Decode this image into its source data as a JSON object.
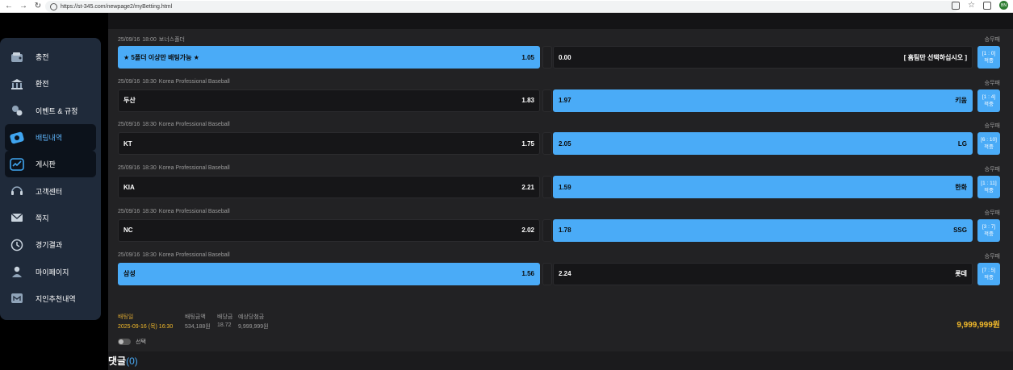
{
  "browser": {
    "url": "https://st-345.com/newpage2/myBetting.html",
    "profile_initials": "BN"
  },
  "sidebar": {
    "items": [
      {
        "label": "충전",
        "icon": "wallet-icon"
      },
      {
        "label": "환전",
        "icon": "bank-icon"
      },
      {
        "label": "이벤트 & 규정",
        "icon": "event-icon"
      },
      {
        "label": "배팅내역",
        "icon": "ticket-icon",
        "active": true,
        "highlight": true
      },
      {
        "label": "게시판",
        "icon": "board-icon",
        "active": true
      },
      {
        "label": "고객센터",
        "icon": "support-icon"
      },
      {
        "label": "쪽지",
        "icon": "mail-icon"
      },
      {
        "label": "경기결과",
        "icon": "clock-icon"
      },
      {
        "label": "마이페이지",
        "icon": "user-icon"
      },
      {
        "label": "지인추천내역",
        "icon": "referral-icon"
      }
    ]
  },
  "games": [
    {
      "date": "25/09/16",
      "time": "18:00",
      "league": "보너스폴더",
      "kind": "승무패",
      "home": "★ 5폴더 이상만 배팅가능 ★",
      "home_odds": "1.05",
      "away": "[ 홈팀만 선택하십시오 ]",
      "away_odds": "0.00",
      "selected": "home",
      "score": "[1 : 0]",
      "status": "적중"
    },
    {
      "date": "25/09/16",
      "time": "18:30",
      "league": "Korea Professional Baseball",
      "kind": "승무패",
      "home": "두산",
      "home_odds": "1.83",
      "away": "키움",
      "away_odds": "1.97",
      "selected": "away",
      "score": "[1 : 4]",
      "status": "적중"
    },
    {
      "date": "25/09/16",
      "time": "18:30",
      "league": "Korea Professional Baseball",
      "kind": "승무패",
      "home": "KT",
      "home_odds": "1.75",
      "away": "LG",
      "away_odds": "2.05",
      "selected": "away",
      "score": "[6 : 10]",
      "status": "적중"
    },
    {
      "date": "25/09/16",
      "time": "18:30",
      "league": "Korea Professional Baseball",
      "kind": "승무패",
      "home": "KIA",
      "home_odds": "2.21",
      "away": "한화",
      "away_odds": "1.59",
      "selected": "away",
      "score": "[1 : 11]",
      "status": "적중"
    },
    {
      "date": "25/09/16",
      "time": "18:30",
      "league": "Korea Professional Baseball",
      "kind": "승무패",
      "home": "NC",
      "home_odds": "2.02",
      "away": "SSG",
      "away_odds": "1.78",
      "selected": "away",
      "score": "[3 : 7]",
      "status": "적중"
    },
    {
      "date": "25/09/16",
      "time": "18:30",
      "league": "Korea Professional Baseball",
      "kind": "승무패",
      "home": "삼성",
      "home_odds": "1.56",
      "away": "롯데",
      "away_odds": "2.24",
      "selected": "home",
      "score": "[7 : 5]",
      "status": "적중"
    }
  ],
  "summary": {
    "bet_date_label": "배팅일",
    "bet_date_value": "2025-09-16 (목) 16:30",
    "amount_label": "배팅금액",
    "amount_value": "534,188원",
    "odds_label": "배당금",
    "odds_value": "18.72",
    "expected_label": "예상당첨금",
    "expected_value": "9,999,999원",
    "win_total": "9,999,999원"
  },
  "toggle": {
    "label": "선택"
  },
  "comments": {
    "title": "댓글",
    "count": "(0)"
  },
  "colors": {
    "accent": "#4aabf7",
    "gold": "#f1b92b",
    "sidebar": "#1f2a3a"
  }
}
